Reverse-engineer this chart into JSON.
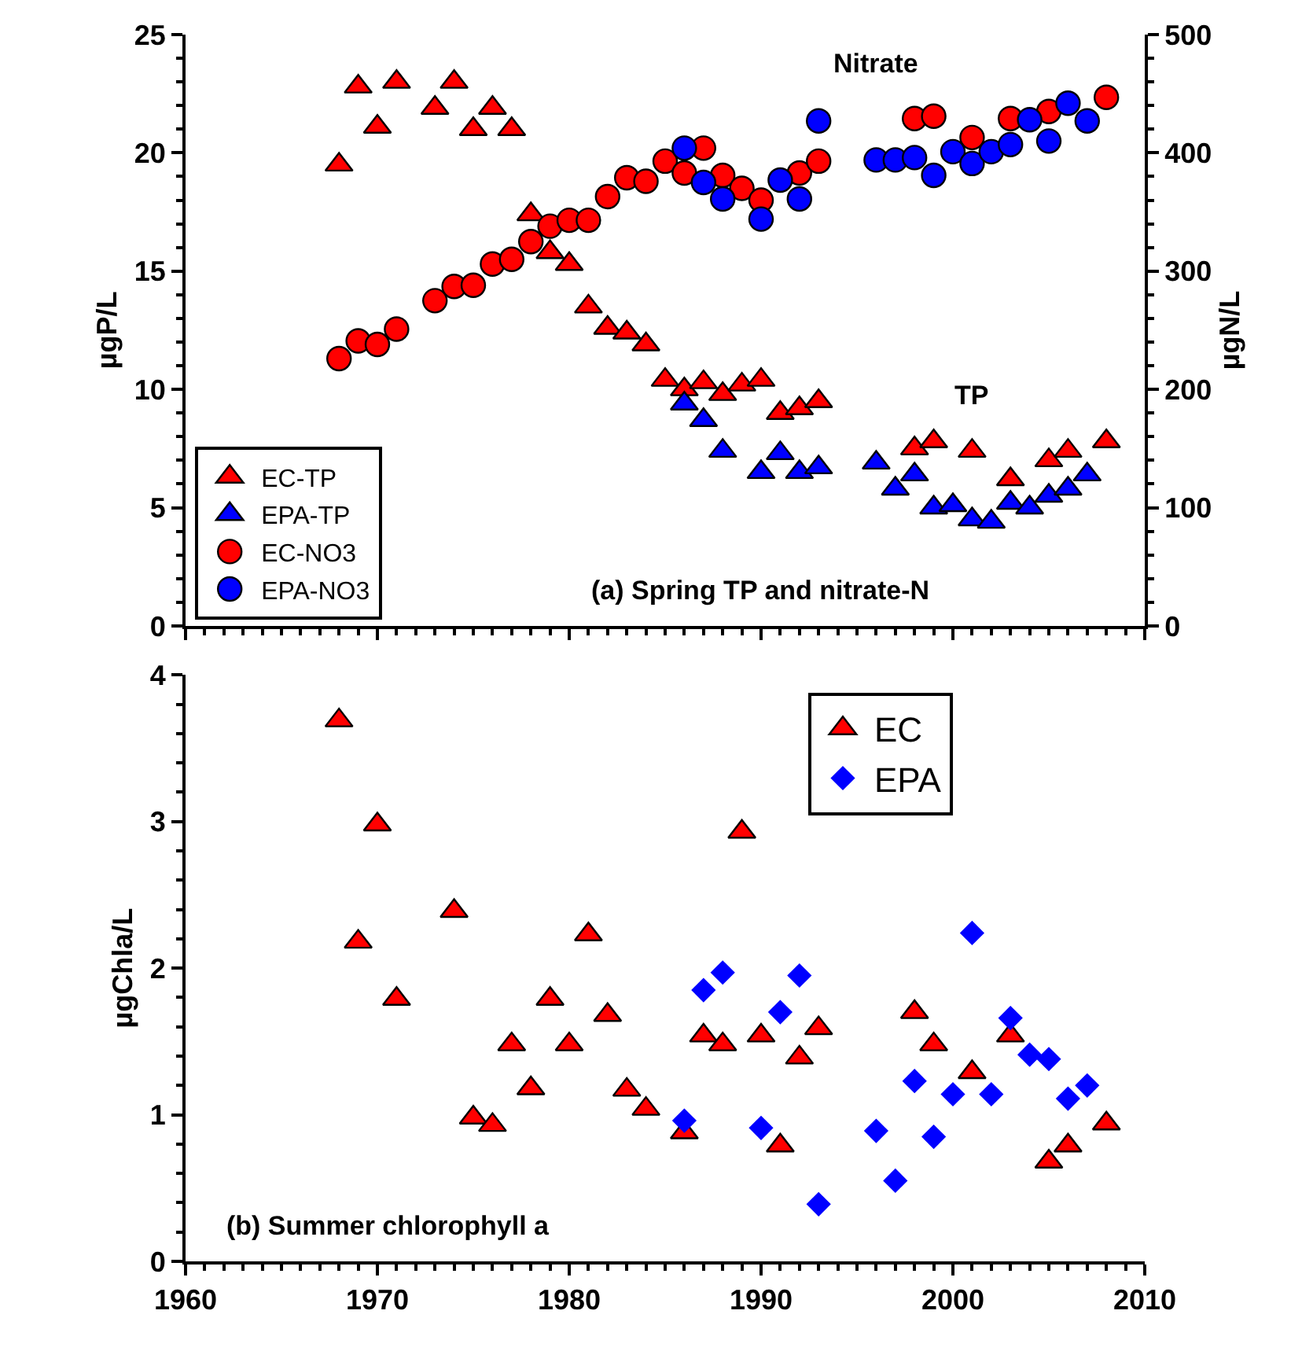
{
  "chart_data": [
    {
      "type": "scatter",
      "ylabel": "µgP/L",
      "y2label": "µgN/L",
      "xlim": [
        1960,
        2010
      ],
      "xticks": [
        1960,
        1970,
        1980,
        1990,
        2000,
        2010
      ],
      "ylim": [
        0,
        25
      ],
      "yticks": [
        0,
        5,
        10,
        15,
        20,
        25
      ],
      "y2lim": [
        0,
        500
      ],
      "y2ticks": [
        0,
        100,
        200,
        300,
        400,
        500
      ],
      "tick_labels": "y",
      "legend": "bottom left",
      "annotations": [
        "Nitrate",
        "TP",
        "(a) Spring TP and nitrate-N"
      ],
      "series": [
        {
          "name": "EC-TP",
          "color": "#ff0000",
          "marker": "triangle",
          "x": [
            1968,
            1969,
            1970,
            1971,
            1973,
            1974,
            1975,
            1976,
            1977,
            1978,
            1979,
            1980,
            1981,
            1982,
            1983,
            1984,
            1985,
            1986,
            1987,
            1988,
            1989,
            1990,
            1991,
            1992,
            1993,
            1998,
            1999,
            2001,
            2003,
            2005,
            2006,
            2008
          ],
          "values": [
            19.5,
            22.8,
            21.1,
            23.0,
            21.9,
            23.0,
            21.0,
            21.9,
            21.0,
            17.4,
            15.8,
            15.3,
            13.5,
            12.6,
            12.4,
            11.9,
            10.4,
            10.0,
            10.3,
            9.8,
            10.2,
            10.4,
            9.0,
            9.2,
            9.5,
            7.5,
            7.8,
            7.4,
            6.2,
            7.0,
            7.4,
            7.8
          ]
        },
        {
          "name": "EPA-TP",
          "color": "#0000ff",
          "marker": "triangle",
          "x": [
            1986,
            1987,
            1988,
            1990,
            1991,
            1992,
            1993,
            1996,
            1997,
            1998,
            1999,
            2000,
            2001,
            2002,
            2003,
            2004,
            2005,
            2006,
            2007
          ],
          "values": [
            9.4,
            8.7,
            7.4,
            6.5,
            7.3,
            6.5,
            6.7,
            6.9,
            5.8,
            6.4,
            5.0,
            5.1,
            4.5,
            4.4,
            5.2,
            5.0,
            5.5,
            5.8,
            6.4
          ]
        },
        {
          "name": "EC-NO3",
          "color": "#ff0000",
          "marker": "circle",
          "axis": "y2",
          "x": [
            1968,
            1969,
            1970,
            1971,
            1973,
            1974,
            1975,
            1976,
            1977,
            1978,
            1979,
            1980,
            1981,
            1982,
            1983,
            1984,
            1985,
            1986,
            1987,
            1988,
            1989,
            1990,
            1992,
            1993,
            1998,
            1999,
            2001,
            2003,
            2005,
            2008
          ],
          "values": [
            226,
            241,
            238,
            251,
            275,
            287,
            288,
            306,
            310,
            325,
            338,
            343,
            343,
            363,
            379,
            376,
            393,
            383,
            404,
            381,
            370,
            360,
            383,
            393,
            429,
            431,
            413,
            429,
            435,
            447
          ]
        },
        {
          "name": "EPA-NO3",
          "color": "#0000ff",
          "marker": "circle",
          "axis": "y2",
          "x": [
            1986,
            1987,
            1988,
            1990,
            1991,
            1992,
            1993,
            1996,
            1997,
            1998,
            1999,
            2000,
            2001,
            2002,
            2003,
            2004,
            2005,
            2006,
            2007
          ],
          "values": [
            404,
            375,
            361,
            344,
            377,
            361,
            427,
            394,
            394,
            396,
            381,
            401,
            391,
            401,
            407,
            428,
            410,
            442,
            427
          ]
        }
      ]
    },
    {
      "type": "scatter",
      "ylabel": "µgChla/L",
      "xlim": [
        1960,
        2010
      ],
      "xticks": [
        1960,
        1970,
        1980,
        1990,
        2000,
        2010
      ],
      "ylim": [
        0,
        4
      ],
      "yticks": [
        0,
        1,
        2,
        3,
        4
      ],
      "legend": "top right",
      "annotations": [
        "(b) Summer chlorophyll a"
      ],
      "series": [
        {
          "name": "EC",
          "color": "#ff0000",
          "marker": "triangle",
          "x": [
            1968,
            1969,
            1970,
            1971,
            1974,
            1975,
            1976,
            1977,
            1978,
            1979,
            1980,
            1981,
            1982,
            1983,
            1984,
            1986,
            1987,
            1988,
            1989,
            1990,
            1991,
            1992,
            1993,
            1998,
            1999,
            2001,
            2003,
            2005,
            2006,
            2008
          ],
          "values": [
            3.69,
            2.18,
            2.98,
            1.79,
            2.39,
            0.98,
            0.93,
            1.48,
            1.18,
            1.79,
            1.48,
            2.23,
            1.68,
            1.17,
            1.04,
            0.88,
            1.54,
            1.48,
            2.93,
            1.54,
            0.79,
            1.39,
            1.59,
            1.7,
            1.48,
            1.29,
            1.54,
            0.68,
            0.79,
            0.94
          ]
        },
        {
          "name": "EPA",
          "color": "#0000ff",
          "marker": "diamond",
          "x": [
            1986,
            1987,
            1988,
            1990,
            1991,
            1992,
            1993,
            1996,
            1997,
            1998,
            1999,
            2000,
            2001,
            2002,
            2003,
            2004,
            2005,
            2006,
            2007
          ],
          "values": [
            0.96,
            1.85,
            1.97,
            0.91,
            1.7,
            1.95,
            0.39,
            0.89,
            0.55,
            1.23,
            0.85,
            1.14,
            2.24,
            1.14,
            1.66,
            1.41,
            1.38,
            1.11,
            1.2
          ]
        }
      ]
    }
  ]
}
